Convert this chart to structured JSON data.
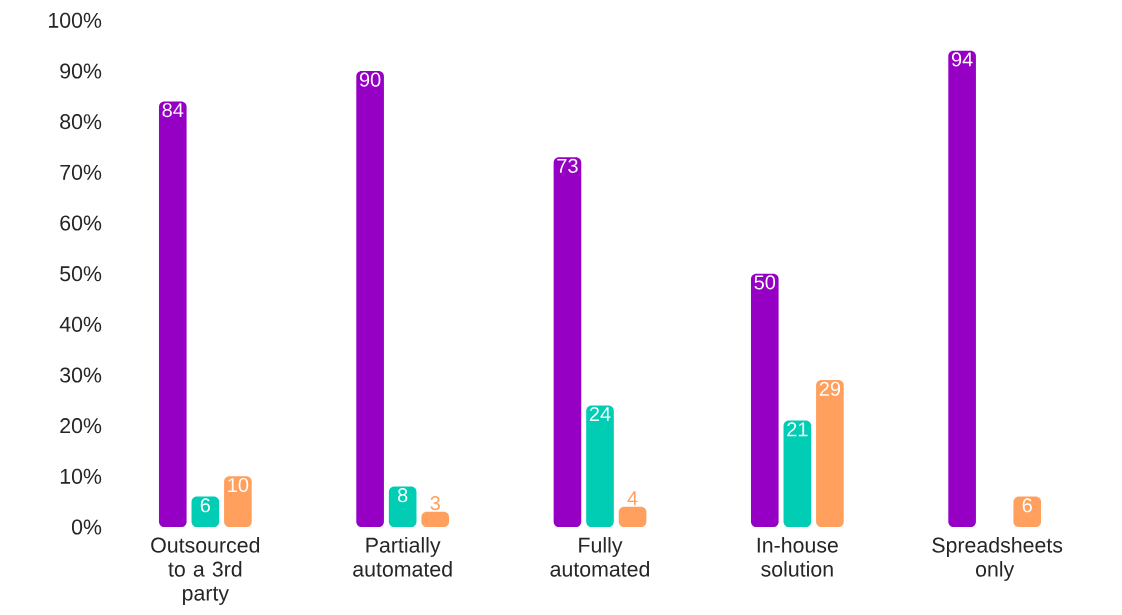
{
  "chart_data": {
    "type": "bar",
    "categories": [
      "Outsourced to a 3rd party",
      "Partially automated",
      "Fully automated",
      "In-house solution",
      "Spreadsheets only"
    ],
    "series": [
      {
        "color": "#9500c4",
        "values": [
          84,
          90,
          73,
          50,
          94
        ]
      },
      {
        "color": "#00cdb4",
        "values": [
          6,
          8,
          24,
          21,
          null
        ]
      },
      {
        "color": "#ffa05e",
        "values": [
          10,
          3,
          4,
          29,
          6
        ]
      }
    ],
    "ylim": [
      0,
      100
    ],
    "yticks": [
      {
        "value": 0,
        "label": "0%"
      },
      {
        "value": 10,
        "label": "10%"
      },
      {
        "value": 20,
        "label": "20%"
      },
      {
        "value": 30,
        "label": "30%"
      },
      {
        "value": 40,
        "label": "40%"
      },
      {
        "value": 50,
        "label": "50%"
      },
      {
        "value": 60,
        "label": "60%"
      },
      {
        "value": 70,
        "label": "70%"
      },
      {
        "value": 80,
        "label": "80%"
      },
      {
        "value": 90,
        "label": "90%"
      },
      {
        "value": 100,
        "label": "100%"
      }
    ],
    "data_labels": true
  }
}
